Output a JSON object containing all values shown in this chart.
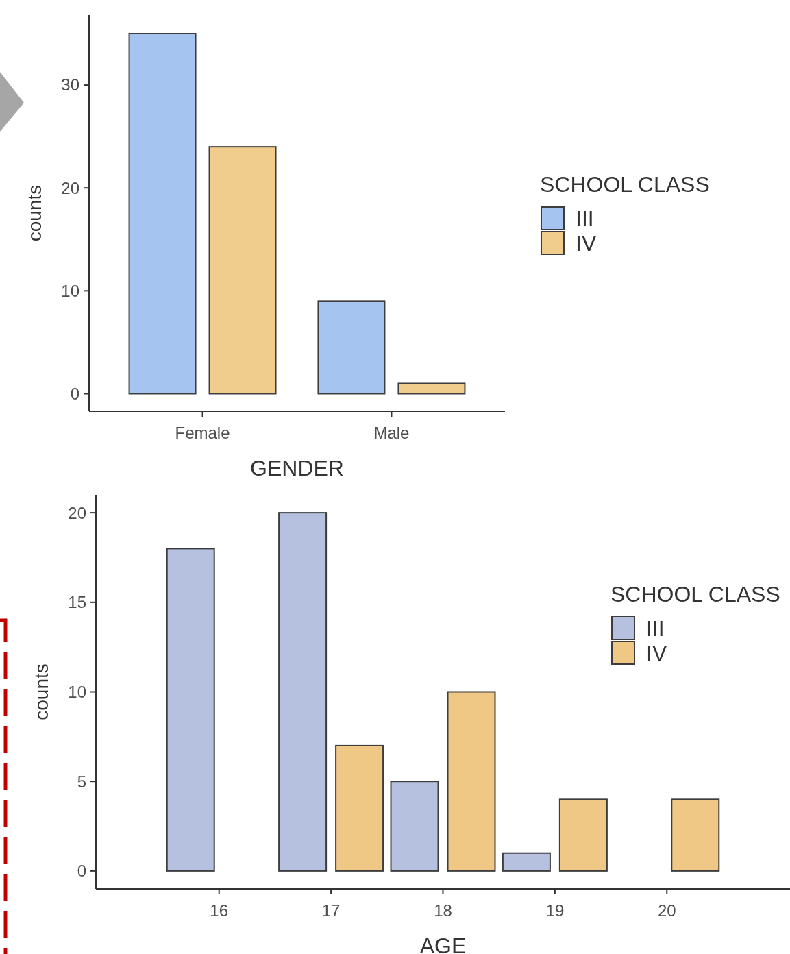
{
  "chart_data": [
    {
      "type": "bar",
      "categories": [
        "Female",
        "Male"
      ],
      "xlabel": "GENDER",
      "ylabel": "counts",
      "legend_title": "SCHOOL CLASS",
      "legend": "right",
      "ylim": [
        -1.7,
        36.8
      ],
      "yticks": [
        0,
        10,
        20,
        30
      ],
      "series": [
        {
          "name": "III",
          "color": "#a6c4f0",
          "values": [
            35,
            9
          ]
        },
        {
          "name": "IV",
          "color": "#f0cd8c",
          "values": [
            24,
            1
          ]
        }
      ]
    },
    {
      "type": "bar",
      "categories": [
        "16",
        "17",
        "18",
        "19",
        "20"
      ],
      "xlabel": "AGE",
      "ylabel": "counts",
      "legend_title": "SCHOOL CLASS",
      "legend": "right",
      "ylim": [
        -1,
        21
      ],
      "yticks": [
        0,
        5,
        10,
        15,
        20
      ],
      "series": [
        {
          "name": "III",
          "color": "#b5c1de",
          "values": [
            18,
            20,
            5,
            1,
            0
          ]
        },
        {
          "name": "IV",
          "color": "#efc886",
          "values": [
            0,
            7,
            10,
            4,
            4
          ]
        }
      ]
    }
  ]
}
